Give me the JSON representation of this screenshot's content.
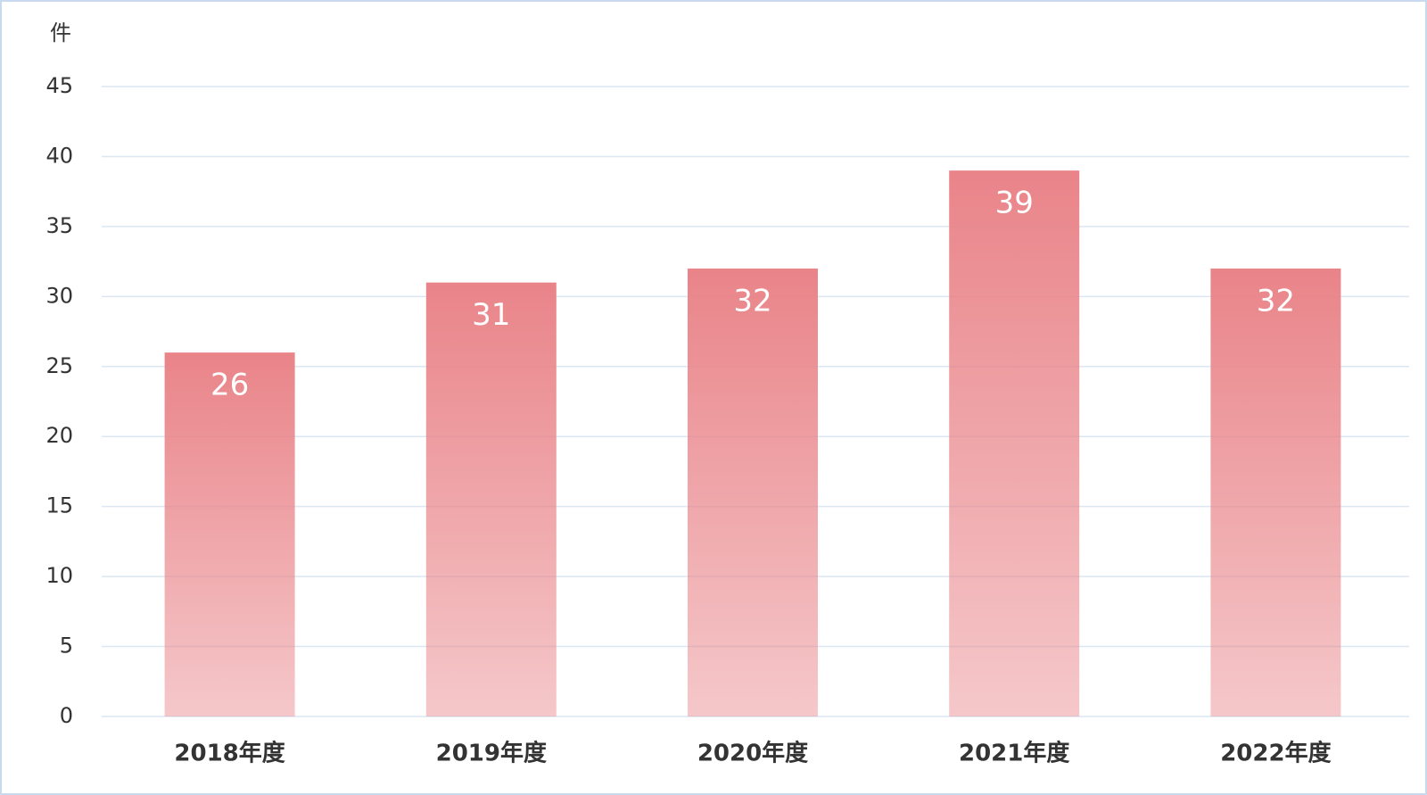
{
  "chart_data": {
    "type": "bar",
    "y_unit_label": "件",
    "categories": [
      "2018年度",
      "2019年度",
      "2020年度",
      "2021年度",
      "2022年度"
    ],
    "values": [
      26,
      31,
      32,
      39,
      32
    ],
    "color": "#e98489",
    "ylim": [
      0,
      45
    ],
    "yticks": [
      0,
      5,
      10,
      15,
      20,
      25,
      30,
      35,
      40,
      45
    ],
    "grid": true
  }
}
